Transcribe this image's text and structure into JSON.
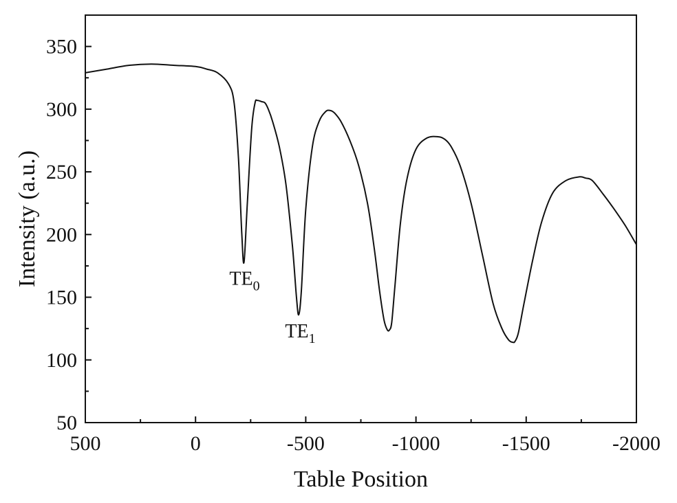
{
  "chart_data": {
    "type": "line",
    "title": "",
    "xlabel": "Table Position",
    "ylabel": "Intensity (a.u.)",
    "xlim": [
      500,
      -2000
    ],
    "ylim": [
      50,
      375
    ],
    "x_reversed": true,
    "xticks": [
      500,
      0,
      -500,
      -1000,
      -1500,
      -2000
    ],
    "xtick_labels": [
      "500",
      "0",
      "-500",
      "-1000",
      "-1500",
      "-2000"
    ],
    "yticks": [
      50,
      100,
      150,
      200,
      250,
      300,
      350
    ],
    "ytick_labels": [
      "50",
      "100",
      "150",
      "200",
      "250",
      "300",
      "350"
    ],
    "grid": false,
    "legend": "none",
    "line_color": "#111111",
    "series": [
      {
        "x": [
          500,
          400,
          300,
          200,
          100,
          0,
          -50,
          -100,
          -150,
          -175,
          -195,
          -210,
          -220,
          -235,
          -255,
          -270,
          -280,
          -300,
          -315,
          -330,
          -350,
          -380,
          -410,
          -440,
          -458,
          -468,
          -480,
          -500,
          -530,
          -560,
          -590,
          -610,
          -630,
          -660,
          -700,
          -740,
          -780,
          -810,
          -835,
          -855,
          -870,
          -880,
          -890,
          -905,
          -930,
          -960,
          -1000,
          -1050,
          -1100,
          -1130,
          -1160,
          -1200,
          -1250,
          -1300,
          -1350,
          -1390,
          -1420,
          -1440,
          -1450,
          -1465,
          -1490,
          -1530,
          -1570,
          -1620,
          -1680,
          -1740,
          -1770,
          -1800,
          -1850,
          -1900,
          -1950,
          -2000
        ],
        "y": [
          329,
          332,
          335,
          336,
          335,
          334,
          332,
          329,
          320,
          305,
          260,
          200,
          178,
          225,
          285,
          305,
          307,
          306,
          305,
          300,
          290,
          270,
          240,
          190,
          150,
          136,
          155,
          220,
          270,
          290,
          298,
          299,
          297,
          290,
          275,
          255,
          225,
          190,
          155,
          132,
          124,
          124,
          130,
          160,
          210,
          245,
          268,
          277,
          278,
          276,
          270,
          255,
          225,
          185,
          145,
          125,
          116,
          114,
          115,
          122,
          145,
          180,
          210,
          233,
          243,
          246,
          245,
          243,
          232,
          220,
          207,
          192
        ]
      }
    ],
    "annotations": [
      {
        "base": "TE",
        "sub": "0",
        "x": -210,
        "y": 160
      },
      {
        "base": "TE",
        "sub": "1",
        "x": -463,
        "y": 118
      }
    ]
  }
}
